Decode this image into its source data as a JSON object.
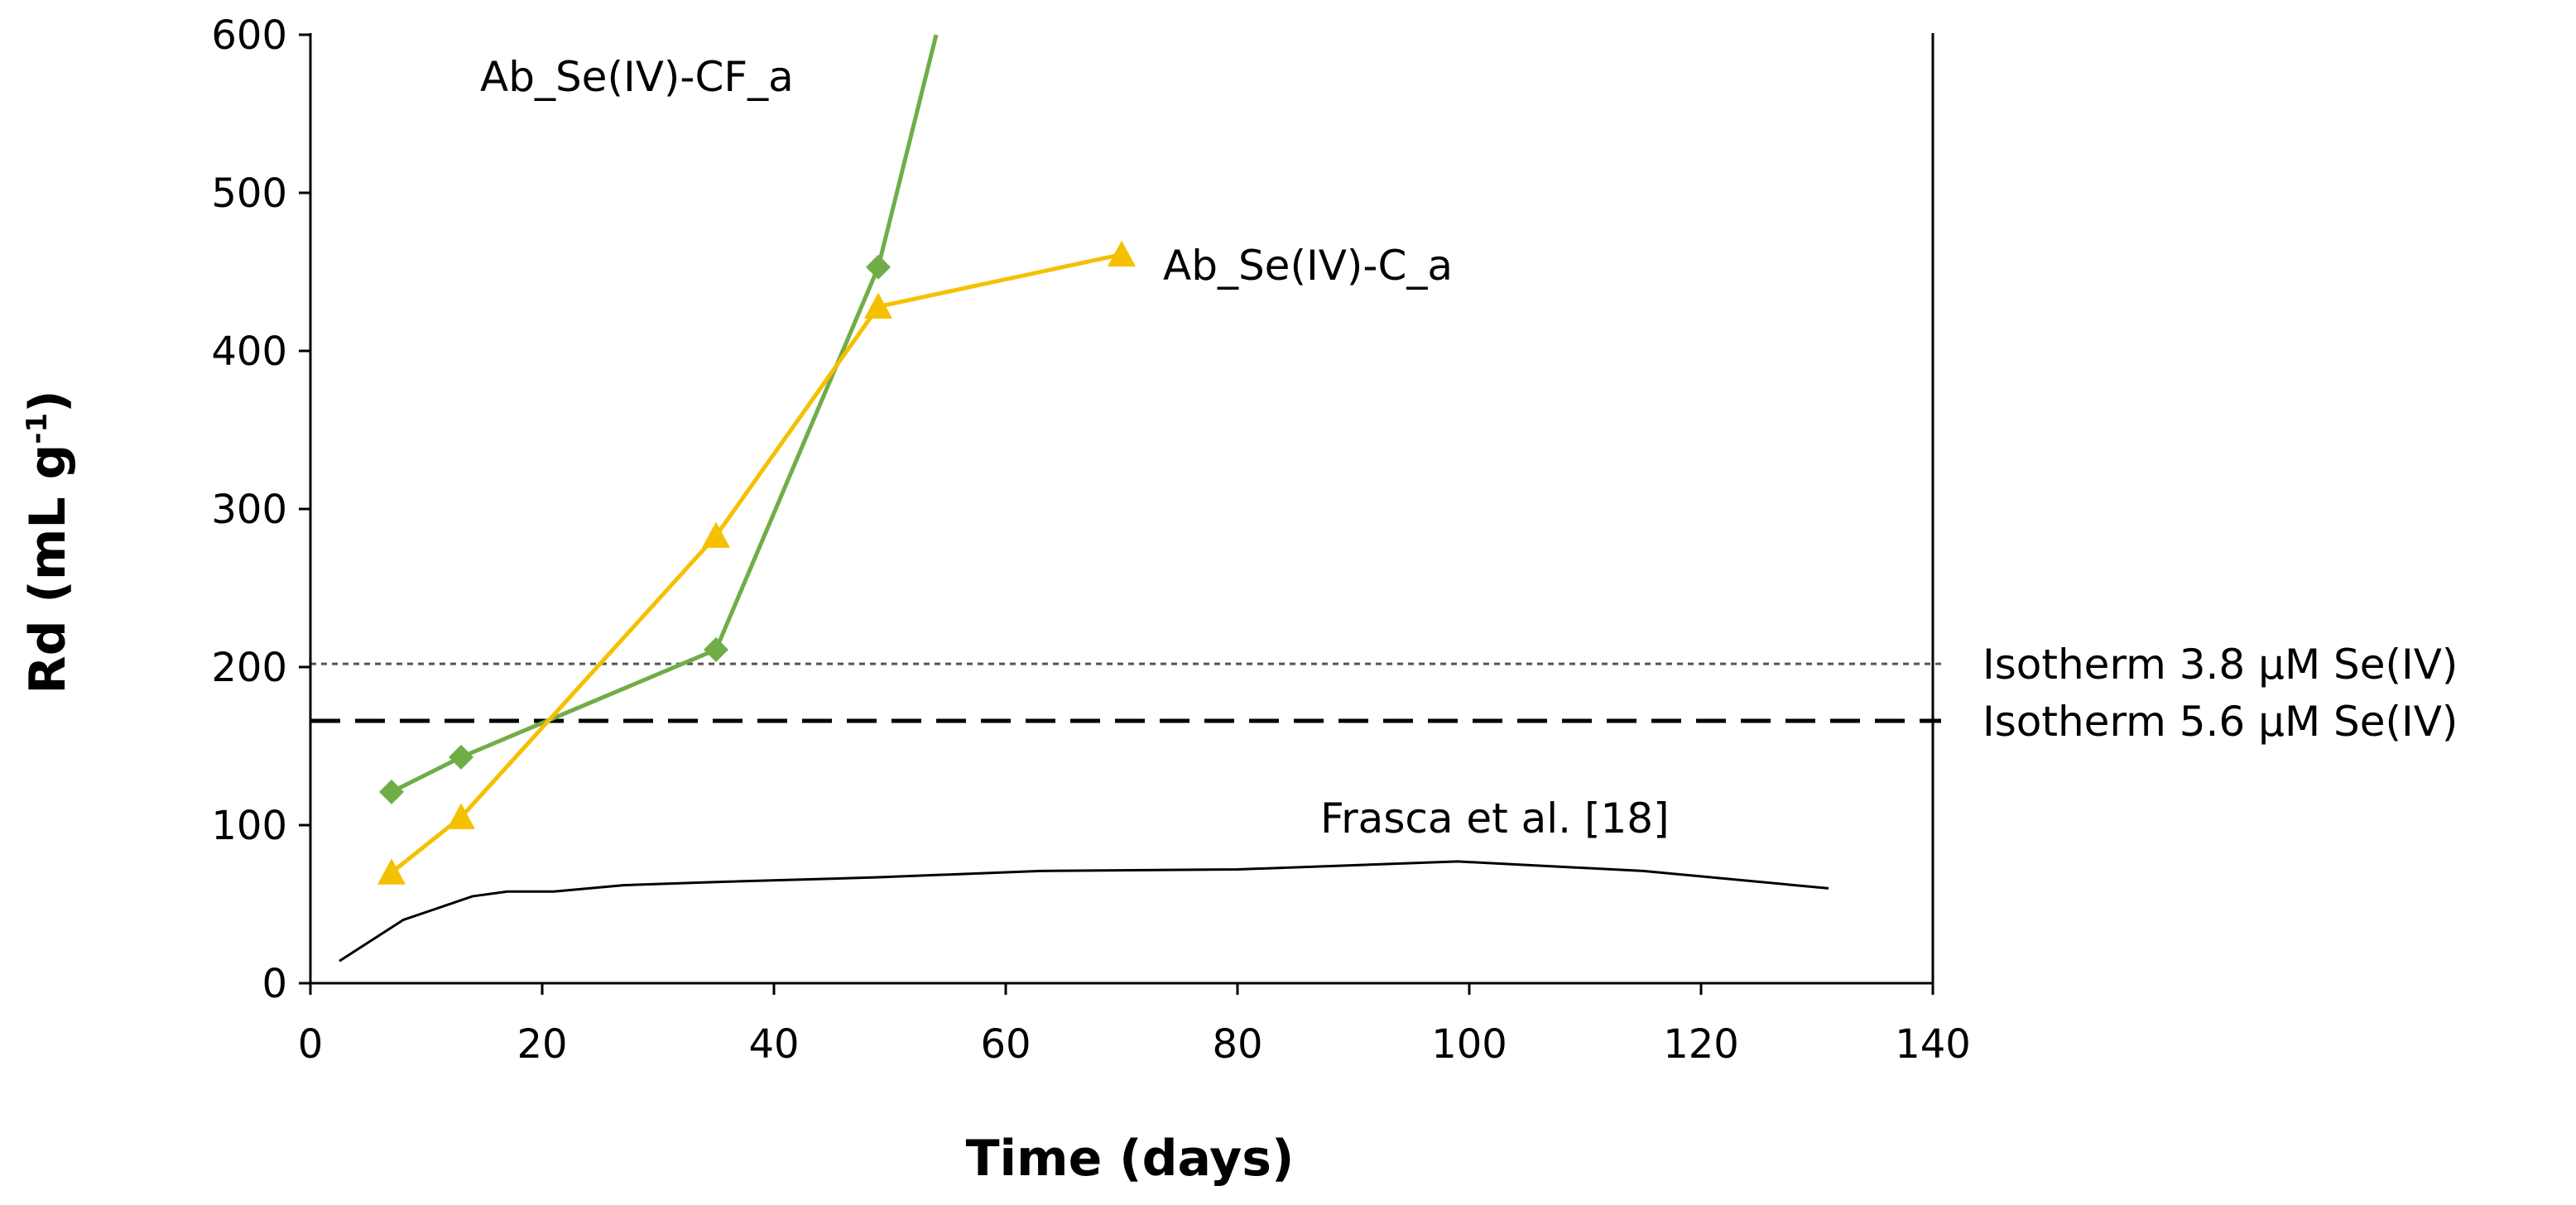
{
  "chart_data": {
    "type": "line",
    "xlabel": "Time (days)",
    "ylabel": "Rd  (mL g",
    "ylabel_sup": "-1",
    "ylabel_close": ")",
    "xlim": [
      0,
      140
    ],
    "ylim": [
      0,
      600
    ],
    "xticks": [
      0,
      20,
      40,
      60,
      80,
      100,
      120,
      140
    ],
    "yticks": [
      0,
      100,
      200,
      300,
      400,
      500,
      600
    ],
    "series": [
      {
        "name": "Ab_Se(IV)-CF_a",
        "color": "#70AD47",
        "marker": "diamond",
        "x": [
          7,
          13,
          35,
          49
        ],
        "y": [
          121,
          143,
          211,
          453
        ],
        "extension": {
          "x": [
            49,
            54
          ],
          "y": [
            453,
            600
          ]
        }
      },
      {
        "name": "Ab_Se(IV)-C_a",
        "color": "#F5C000",
        "marker": "triangle",
        "x": [
          7,
          13,
          35,
          49,
          70
        ],
        "y": [
          70,
          105,
          283,
          428,
          461
        ]
      },
      {
        "name": "Frasca et al. [18]",
        "color": "#000000",
        "marker": "none",
        "x": [
          2.5,
          8,
          14,
          17,
          21,
          27,
          35,
          49,
          63,
          80,
          99,
          115,
          131
        ],
        "y": [
          14,
          40,
          55,
          58,
          58,
          62,
          64,
          67,
          71,
          72,
          77,
          71,
          60
        ]
      }
    ],
    "reference_lines": [
      {
        "name": "Isotherm 3.8 µM Se(IV)",
        "y": 202,
        "style": "dotted"
      },
      {
        "name": "Isotherm 5.6 µM Se(IV)",
        "y": 166,
        "style": "dashed"
      }
    ]
  }
}
